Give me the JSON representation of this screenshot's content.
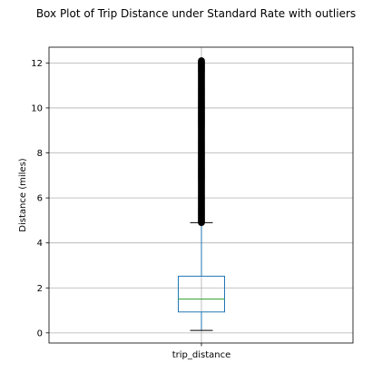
{
  "chart_data": {
    "type": "box",
    "title": "Box Plot of Trip Distance under Standard Rate with outliers",
    "xlabel": "",
    "ylabel": "Distance (miles)",
    "categories": [
      "trip_distance"
    ],
    "ylim": [
      -0.45,
      12.7
    ],
    "yticks": [
      0,
      2,
      4,
      6,
      8,
      10,
      12
    ],
    "grid": true,
    "box": {
      "whisker_low": 0.11,
      "q1": 0.93,
      "median": 1.5,
      "q3": 2.52,
      "whisker_high": 4.9,
      "outliers_range": [
        4.9,
        12.1
      ]
    },
    "colors": {
      "box": "#1f77b4",
      "median": "#2ca02c",
      "whisker": "#1f77b4",
      "cap": "#000000",
      "outliers": "#000000",
      "grid": "#b0b0b0"
    }
  }
}
